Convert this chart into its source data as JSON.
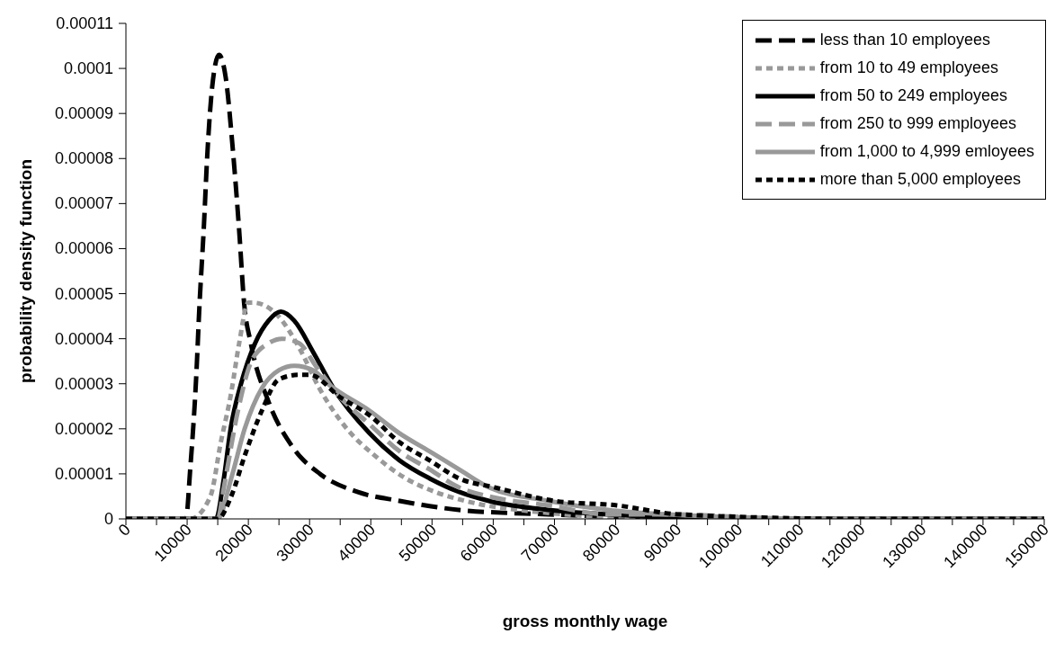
{
  "chart_data": {
    "type": "line",
    "xlabel": "gross monthly wage",
    "ylabel": "probability density function",
    "xlim": [
      0,
      150000
    ],
    "ylim": [
      0,
      0.00011
    ],
    "xticks": [
      0,
      {
        "value": 5000,
        "label": null
      },
      10000,
      {
        "value": 15000,
        "label": null
      },
      20000,
      {
        "value": 25000,
        "label": null
      },
      30000,
      {
        "value": 35000,
        "label": null
      },
      40000,
      {
        "value": 45000,
        "label": null
      },
      50000,
      {
        "value": 55000,
        "label": null
      },
      60000,
      {
        "value": 65000,
        "label": null
      },
      70000,
      {
        "value": 75000,
        "label": null
      },
      80000,
      {
        "value": 85000,
        "label": null
      },
      90000,
      {
        "value": 95000,
        "label": null
      },
      100000,
      {
        "value": 105000,
        "label": null
      },
      110000,
      {
        "value": 115000,
        "label": null
      },
      120000,
      {
        "value": 125000,
        "label": null
      },
      130000,
      {
        "value": 135000,
        "label": null
      },
      140000,
      {
        "value": 145000,
        "label": null
      },
      150000
    ],
    "yticks": [
      0,
      {
        "value": 1e-05,
        "label": "0.00001"
      },
      {
        "value": 2e-05,
        "label": "0.00002"
      },
      {
        "value": 3e-05,
        "label": "0.00003"
      },
      {
        "value": 4e-05,
        "label": "0.00004"
      },
      {
        "value": 5e-05,
        "label": "0.00005"
      },
      {
        "value": 6e-05,
        "label": "0.00006"
      },
      {
        "value": 7e-05,
        "label": "0.00007"
      },
      {
        "value": 8e-05,
        "label": "0.00008"
      },
      {
        "value": 9e-05,
        "label": "0.00009"
      },
      {
        "value": 0.0001,
        "label": "0.0001"
      },
      {
        "value": 0.00011,
        "label": "0.00011"
      }
    ],
    "legend": "top right",
    "marker": "none",
    "series": [
      {
        "name": "less than 10 employees",
        "color": "#000000",
        "line_style": "dashed",
        "x": [
          0,
          9800,
          10500,
          11500,
          12000,
          12700,
          13300,
          14100,
          15200,
          16300,
          17400,
          18500,
          19300,
          20400,
          23300,
          27200,
          31700,
          37800,
          44700,
          54400,
          69000,
          100000,
          150000
        ],
        "values": [
          0,
          0,
          1.1e-05,
          3.2e-05,
          4.7e-05,
          6.4e-05,
          8.1e-05,
          9.6e-05,
          0.000103,
          9.8e-05,
          8.3e-05,
          6.4e-05,
          4.8e-05,
          3.9e-05,
          2.6e-05,
          1.6e-05,
          1e-05,
          6e-06,
          4e-06,
          2e-06,
          1e-06,
          0,
          0
        ]
      },
      {
        "name": "from 10 to 49 employees",
        "color": "#999999",
        "line_style": "dotted",
        "x": [
          0,
          10500,
          13800,
          15500,
          17200,
          18500,
          20000,
          20800,
          24900,
          28300,
          31600,
          36100,
          40700,
          45700,
          50500,
          55400,
          64100,
          90000,
          150000
        ],
        "values": [
          0,
          0,
          5e-06,
          1.7e-05,
          2.8e-05,
          3.9e-05,
          4.8e-05,
          4.8e-05,
          4.5e-05,
          3.8e-05,
          2.9e-05,
          2e-05,
          1.4e-05,
          9e-06,
          6e-06,
          4e-06,
          2e-06,
          0,
          0
        ]
      },
      {
        "name": "from 50 to 249 employees",
        "color": "#000000",
        "line_style": "solid",
        "x": [
          0,
          14700,
          16000,
          17100,
          18800,
          21100,
          23300,
          25300,
          27500,
          30600,
          33900,
          39800,
          44700,
          49600,
          54400,
          59300,
          69000,
          78700,
          100000,
          150000
        ],
        "values": [
          0,
          0,
          9e-06,
          2e-05,
          3e-05,
          3.9e-05,
          4.4e-05,
          4.6e-05,
          4.4e-05,
          3.7e-05,
          2.9e-05,
          1.9e-05,
          1.3e-05,
          9e-06,
          6e-06,
          4e-06,
          2e-06,
          1e-06,
          0,
          0
        ]
      },
      {
        "name": "from 250 to 999 employees",
        "color": "#999999",
        "line_style": "dashed",
        "x": [
          0,
          15000,
          16000,
          18300,
          20500,
          23300,
          25500,
          28300,
          31000,
          35000,
          39800,
          44700,
          49600,
          54400,
          59300,
          69000,
          78700,
          88400,
          110000,
          150000
        ],
        "values": [
          0,
          0,
          7e-06,
          2.4e-05,
          3.5e-05,
          3.9e-05,
          4e-05,
          3.9e-05,
          3.4e-05,
          2.7e-05,
          2.1e-05,
          1.5e-05,
          1.1e-05,
          7e-06,
          5e-06,
          3e-06,
          1e-06,
          1e-06,
          0,
          0
        ]
      },
      {
        "name": "from 1,000 to 4,999 emloyees",
        "color": "#999999",
        "line_style": "solid",
        "x": [
          0,
          15000,
          17200,
          19400,
          22200,
          25000,
          27500,
          30600,
          33000,
          39800,
          44700,
          49600,
          54400,
          59300,
          69000,
          78700,
          88400,
          115000,
          150000
        ],
        "values": [
          0,
          0,
          9e-06,
          2e-05,
          2.9e-05,
          3.3e-05,
          3.4e-05,
          3.3e-05,
          3e-05,
          2.4e-05,
          1.9e-05,
          1.5e-05,
          1.1e-05,
          7e-06,
          4e-06,
          2e-06,
          1e-06,
          0,
          0
        ]
      },
      {
        "name": "more than 5,000 employees",
        "color": "#000000",
        "line_style": "dotted",
        "x": [
          0,
          15000,
          17200,
          19400,
          22200,
          25000,
          28300,
          30000,
          35000,
          39800,
          44700,
          49600,
          54400,
          60200,
          70000,
          80200,
          90400,
          120000,
          150000
        ],
        "values": [
          0,
          0,
          5e-06,
          1.4e-05,
          2.4e-05,
          3.1e-05,
          3.2e-05,
          3.2e-05,
          2.7e-05,
          2.3e-05,
          1.7e-05,
          1.3e-05,
          9e-06,
          7e-06,
          4e-06,
          3e-06,
          1e-06,
          0,
          0
        ]
      }
    ]
  }
}
